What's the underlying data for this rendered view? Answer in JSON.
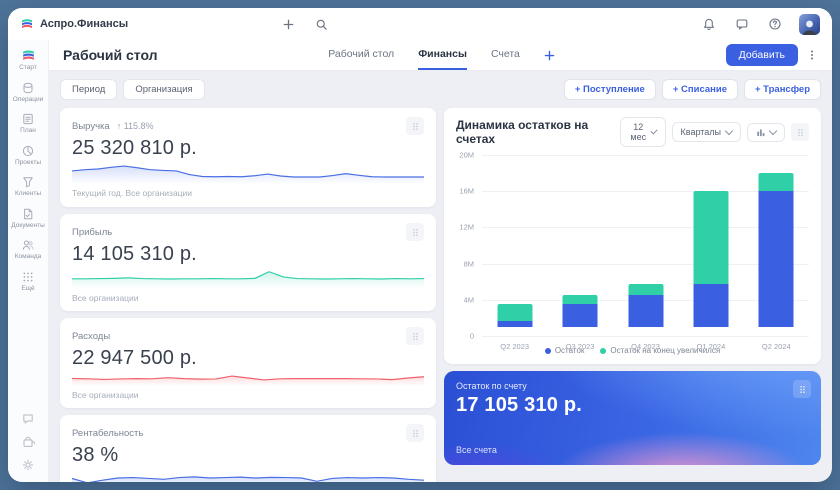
{
  "topbar": {
    "app_name": "Аспро.Финансы"
  },
  "sidebar": {
    "items": [
      {
        "label": "Старт"
      },
      {
        "label": "Операции"
      },
      {
        "label": "План"
      },
      {
        "label": "Проекты"
      },
      {
        "label": "Клиенты"
      },
      {
        "label": "Документы"
      },
      {
        "label": "Команда"
      },
      {
        "label": "Ещё"
      }
    ]
  },
  "header": {
    "title": "Рабочий стол",
    "tabs": [
      {
        "label": "Рабочий стол"
      },
      {
        "label": "Финансы"
      },
      {
        "label": "Счета"
      }
    ],
    "add_button": "Добавить"
  },
  "filters": {
    "period": "Период",
    "organization": "Организация",
    "income": "+ Поступление",
    "expense": "+ Списание",
    "transfer": "+ Трансфер"
  },
  "kpi_cards": [
    {
      "title": "Выручка",
      "delta": "↑ 115.8%",
      "value": "25 320 810 р.",
      "footer": "Текущий год. Все организации",
      "color": "#4a6ee5",
      "spark": [
        55,
        60,
        63,
        70,
        75,
        68,
        60,
        57,
        55,
        40,
        32,
        31,
        32,
        31,
        35,
        42,
        34,
        30,
        30,
        30,
        36,
        44,
        37,
        31,
        30,
        30,
        30,
        30
      ]
    },
    {
      "title": "Прибыль",
      "value": "14 105 310 р.",
      "footer": "Все организации",
      "color": "#2fcfa8",
      "spark": [
        44,
        44,
        45,
        46,
        48,
        45,
        44,
        43,
        44,
        44,
        45,
        44,
        44,
        46,
        75,
        52,
        45,
        44,
        43,
        44,
        45,
        44,
        43,
        45,
        44,
        45
      ]
    },
    {
      "title": "Расходы",
      "value": "22 947 500 р.",
      "footer": "Все организации",
      "color": "#f2606a",
      "spark": [
        47,
        45,
        41,
        44,
        46,
        45,
        52,
        46,
        43,
        44,
        62,
        50,
        38,
        45,
        46,
        46,
        46,
        46,
        45,
        44,
        40,
        50,
        58
      ]
    },
    {
      "title": "Рентабельность",
      "value": "38 %",
      "footer": "",
      "color": "#4a6ee5",
      "spark": [
        48,
        28,
        40,
        50,
        52,
        48,
        44,
        52,
        55,
        50,
        52,
        54,
        50,
        53,
        52,
        50,
        35,
        48,
        52,
        50,
        52,
        50,
        44,
        40
      ]
    }
  ],
  "chart_card": {
    "title": "Динамика остатков на счетах",
    "period_select": "12 мес",
    "granularity_select": "Кварталы"
  },
  "chart_data": {
    "type": "bar",
    "stacked": true,
    "title": "Динамика остатков на счетах",
    "categories": [
      "Q2 2023",
      "Q3 2023",
      "Q4 2023",
      "Q1 2024",
      "Q2 2024"
    ],
    "series": [
      {
        "name": "Остаток",
        "color": "#3a5fe0",
        "values": [
          0.7,
          2.5,
          3.5,
          4.8,
          15.0
        ]
      },
      {
        "name": "Остаток на конец увеличился",
        "color": "#2fcfa8",
        "values": [
          1.8,
          1.0,
          1.3,
          10.2,
          2.0
        ]
      }
    ],
    "ylim": [
      0,
      20
    ],
    "yticks": [
      0,
      4,
      8,
      12,
      16,
      20
    ],
    "ytick_suffix": "M",
    "grid": true,
    "legend_position": "bottom"
  },
  "balance_card": {
    "title": "Остаток по счету",
    "value": "17 105 310 р.",
    "footer": "Все счета"
  }
}
